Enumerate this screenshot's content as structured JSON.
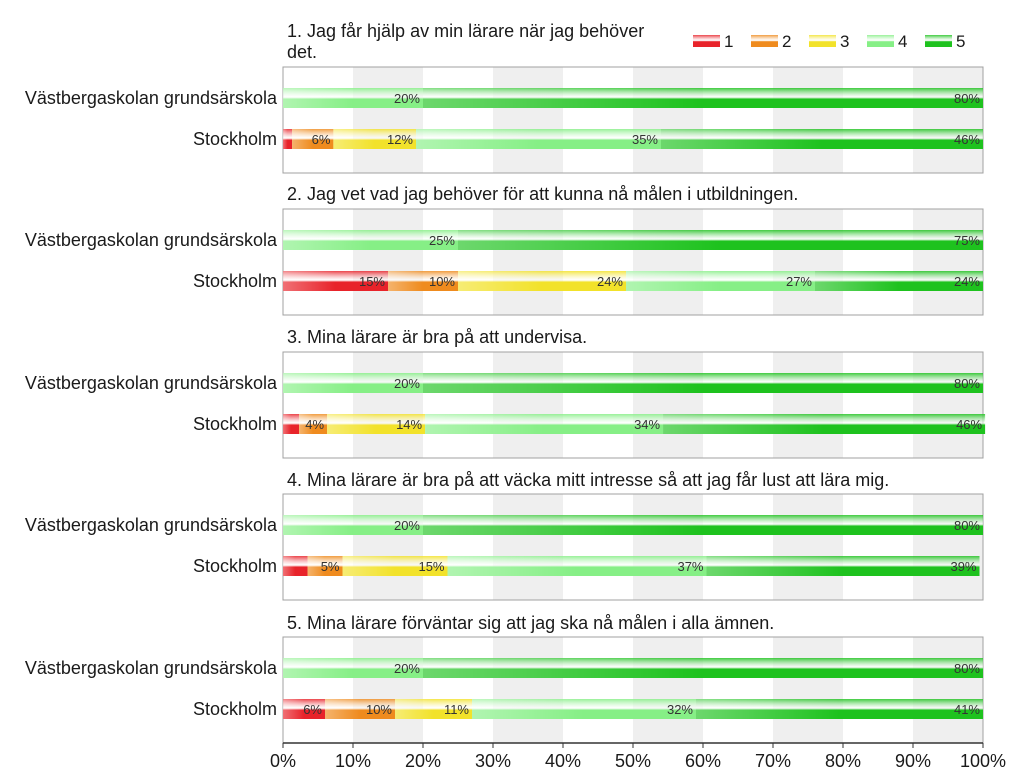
{
  "colors": {
    "1": "#e8232a",
    "2": "#ef8b1e",
    "3": "#f2e22a",
    "4": "#86ef86",
    "5": "#1ec21e",
    "band": "#efefef",
    "frame": "#a0a0a0"
  },
  "chart_data": {
    "type": "bar",
    "orientation": "horizontal",
    "stacked": true,
    "percent": true,
    "legend": {
      "position": "top-right",
      "entries": [
        "1",
        "2",
        "3",
        "4",
        "5"
      ]
    },
    "xlim": [
      0,
      100
    ],
    "x_ticks": [
      "0%",
      "10%",
      "20%",
      "30%",
      "40%",
      "50%",
      "60%",
      "70%",
      "80%",
      "90%",
      "100%"
    ],
    "grid": "alternating-bands",
    "panels": [
      {
        "title": "1. Jag får hjälp av min lärare när jag behöver det.",
        "title_lines": [
          "1. Jag får hjälp av min lärare när jag behöver",
          "det."
        ],
        "categories": [
          "Västbergaskolan grundsärskola",
          "Stockholm"
        ],
        "series": [
          {
            "name": "1",
            "values": [
              0,
              1.3
            ],
            "labels": [
              "",
              ""
            ]
          },
          {
            "name": "2",
            "values": [
              0,
              5.9
            ],
            "labels": [
              "",
              "6%"
            ]
          },
          {
            "name": "3",
            "values": [
              0,
              11.8
            ],
            "labels": [
              "",
              "12%"
            ]
          },
          {
            "name": "4",
            "values": [
              20,
              35
            ],
            "labels": [
              "20%",
              "35%"
            ]
          },
          {
            "name": "5",
            "values": [
              80,
              46
            ],
            "labels": [
              "80%",
              "46%"
            ]
          }
        ]
      },
      {
        "title": "2. Jag vet vad jag behöver för att kunna nå målen i utbildningen.",
        "title_lines": [
          "2. Jag vet vad jag behöver för att kunna nå målen i utbildningen."
        ],
        "categories": [
          "Västbergaskolan grundsärskola",
          "Stockholm"
        ],
        "series": [
          {
            "name": "1",
            "values": [
              0,
              15
            ],
            "labels": [
              "",
              "15%"
            ]
          },
          {
            "name": "2",
            "values": [
              0,
              10
            ],
            "labels": [
              "",
              "10%"
            ]
          },
          {
            "name": "3",
            "values": [
              0,
              24
            ],
            "labels": [
              "",
              "24%"
            ]
          },
          {
            "name": "4",
            "values": [
              25,
              27
            ],
            "labels": [
              "25%",
              "27%"
            ]
          },
          {
            "name": "5",
            "values": [
              75,
              24
            ],
            "labels": [
              "75%",
              "24%"
            ]
          }
        ]
      },
      {
        "title": "3. Mina lärare är bra på att undervisa.",
        "title_lines": [
          "3. Mina lärare är bra på att undervisa."
        ],
        "categories": [
          "Västbergaskolan grundsärskola",
          "Stockholm"
        ],
        "series": [
          {
            "name": "1",
            "values": [
              0,
              2.3
            ],
            "labels": [
              "",
              ""
            ]
          },
          {
            "name": "2",
            "values": [
              0,
              4
            ],
            "labels": [
              "",
              "4%"
            ]
          },
          {
            "name": "3",
            "values": [
              0,
              14
            ],
            "labels": [
              "",
              "14%"
            ]
          },
          {
            "name": "4",
            "values": [
              20,
              34
            ],
            "labels": [
              "20%",
              "34%"
            ]
          },
          {
            "name": "5",
            "values": [
              80,
              46
            ],
            "labels": [
              "80%",
              "46%"
            ]
          }
        ]
      },
      {
        "title": "4. Mina lärare är bra på att väcka mitt intresse så att jag får lust att lära mig.",
        "title_lines": [
          "4. Mina lärare är bra på att väcka mitt intresse så att jag får lust att lära mig."
        ],
        "categories": [
          "Västbergaskolan grundsärskola",
          "Stockholm"
        ],
        "series": [
          {
            "name": "1",
            "values": [
              0,
              3.5
            ],
            "labels": [
              "",
              ""
            ]
          },
          {
            "name": "2",
            "values": [
              0,
              5
            ],
            "labels": [
              "",
              "5%"
            ]
          },
          {
            "name": "3",
            "values": [
              0,
              15
            ],
            "labels": [
              "",
              "15%"
            ]
          },
          {
            "name": "4",
            "values": [
              20,
              37
            ],
            "labels": [
              "20%",
              "37%"
            ]
          },
          {
            "name": "5",
            "values": [
              80,
              39
            ],
            "labels": [
              "80%",
              "39%"
            ]
          }
        ]
      },
      {
        "title": "5. Mina lärare förväntar sig att jag ska nå målen i alla ämnen.",
        "title_lines": [
          "5. Mina lärare förväntar sig att jag ska nå målen i alla ämnen."
        ],
        "categories": [
          "Västbergaskolan grundsärskola",
          "Stockholm"
        ],
        "series": [
          {
            "name": "1",
            "values": [
              0,
              6
            ],
            "labels": [
              "",
              "6%"
            ]
          },
          {
            "name": "2",
            "values": [
              0,
              10
            ],
            "labels": [
              "",
              "10%"
            ]
          },
          {
            "name": "3",
            "values": [
              0,
              11
            ],
            "labels": [
              "",
              "11%"
            ]
          },
          {
            "name": "4",
            "values": [
              20,
              32
            ],
            "labels": [
              "20%",
              "32%"
            ]
          },
          {
            "name": "5",
            "values": [
              80,
              41
            ],
            "labels": [
              "80%",
              "41%"
            ]
          }
        ]
      }
    ]
  }
}
